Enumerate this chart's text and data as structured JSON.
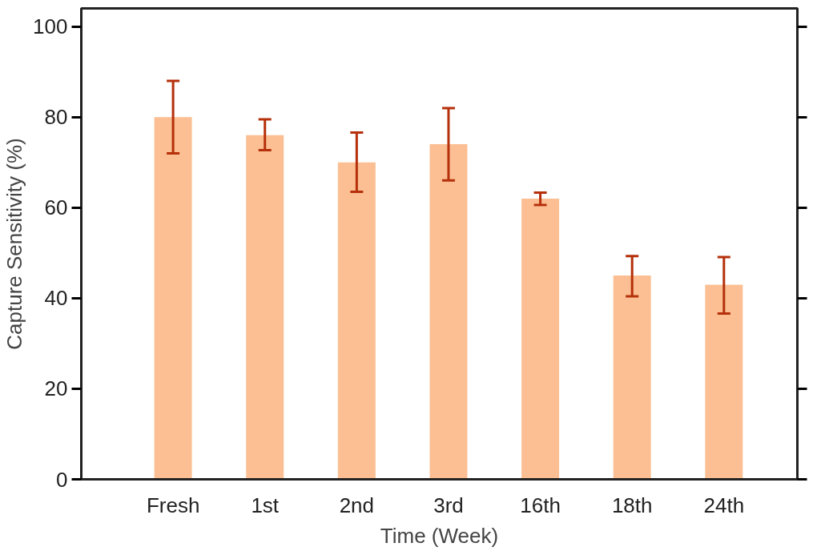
{
  "chart_data": {
    "type": "bar",
    "xlabel": "Time (Week)",
    "ylabel": "Capture Sensitivity (%)",
    "categories": [
      "Fresh",
      "1st",
      "2nd",
      "3rd",
      "16th",
      "18th",
      "24th"
    ],
    "values": [
      80,
      76,
      70,
      74,
      62,
      45,
      43
    ],
    "errors": [
      [
        72,
        88
      ],
      [
        72.7,
        79.5
      ],
      [
        63.5,
        76.6
      ],
      [
        66,
        82
      ],
      [
        60.6,
        63.3
      ],
      [
        40.4,
        49.3
      ],
      [
        36.6,
        49.1
      ]
    ],
    "color": "#fbbf93",
    "ylim": [
      0,
      104
    ],
    "yticks": [
      0,
      20,
      40,
      60,
      80,
      100
    ],
    "grid": false
  }
}
